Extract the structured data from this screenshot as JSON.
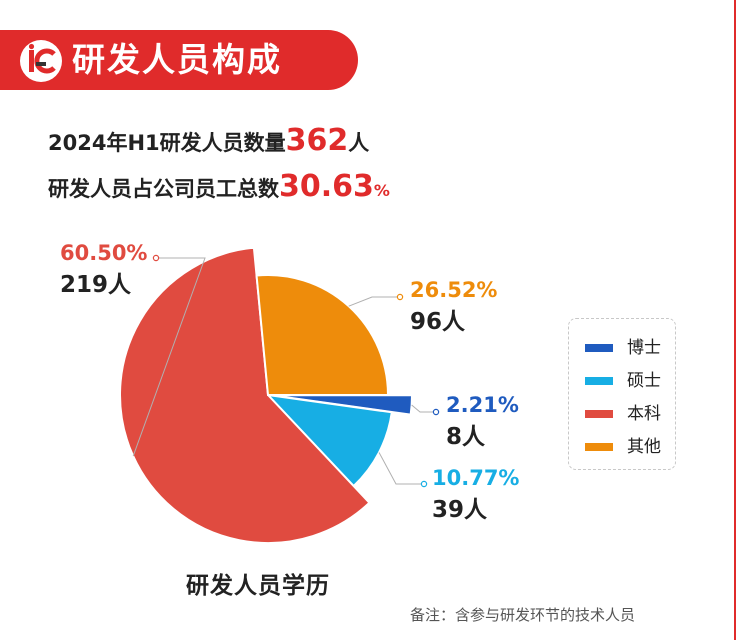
{
  "header": {
    "title": "研发人员构成",
    "icon": "rd-logo-icon"
  },
  "stats": {
    "line1_prefix": "2024年H1研发人员数量",
    "line1_value": "362",
    "line1_suffix": "人",
    "line2_prefix": "研发人员占公司员工总数",
    "line2_value": "30.63",
    "line2_suffix": "%"
  },
  "chart_data": {
    "type": "pie",
    "title": "研发人员学历",
    "legend_position": "right",
    "slices": [
      {
        "name": "博士",
        "value": 8,
        "percent_label": "2.21%",
        "count_label": "8人",
        "color": "#1f5bbf"
      },
      {
        "name": "硕士",
        "value": 39,
        "percent_label": "10.77%",
        "count_label": "39人",
        "color": "#17aee4"
      },
      {
        "name": "本科",
        "value": 219,
        "percent_label": "60.50%",
        "count_label": "219人",
        "color": "#e04b40"
      },
      {
        "name": "其他",
        "value": 96,
        "percent_label": "26.52%",
        "count_label": "96人",
        "color": "#ee8c0b"
      }
    ]
  },
  "footnote": "备注：含参与研发环节的技术人员",
  "colors": {
    "accent": "#e02b2b"
  }
}
